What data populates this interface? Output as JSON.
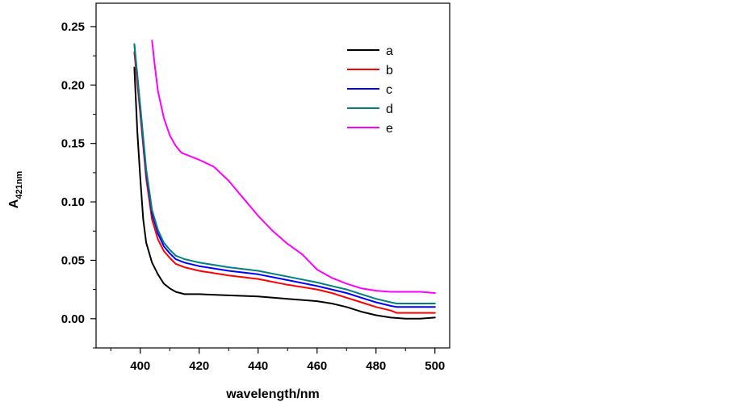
{
  "chart_data": {
    "type": "line",
    "title": "",
    "xlabel": "wavelength/nm",
    "ylabel_main": "A",
    "ylabel_sub": "421nm",
    "xlim": [
      385,
      505
    ],
    "ylim": [
      -0.025,
      0.27
    ],
    "xticks": [
      400,
      420,
      440,
      460,
      480,
      500
    ],
    "xtick_labels": [
      "400",
      "420",
      "440",
      "460",
      "480",
      "500"
    ],
    "yticks": [
      0.0,
      0.05,
      0.1,
      0.15,
      0.2,
      0.25
    ],
    "ytick_labels": [
      "0.00",
      "0.05",
      "0.10",
      "0.15",
      "0.20",
      "0.25"
    ],
    "grid": false,
    "legend_position": "top-right",
    "series": [
      {
        "name": "a",
        "color": "#000000",
        "x": [
          398,
          399,
          400,
          401,
          402,
          404,
          406,
          408,
          410,
          412,
          415,
          420,
          430,
          440,
          450,
          460,
          465,
          470,
          475,
          480,
          485,
          490,
          495,
          500
        ],
        "y": [
          0.215,
          0.16,
          0.12,
          0.085,
          0.065,
          0.048,
          0.038,
          0.03,
          0.026,
          0.023,
          0.021,
          0.021,
          0.02,
          0.019,
          0.017,
          0.015,
          0.013,
          0.01,
          0.006,
          0.003,
          0.001,
          0.0,
          0.0,
          0.001
        ]
      },
      {
        "name": "b",
        "color": "#ff0000",
        "x": [
          398,
          400,
          402,
          404,
          406,
          408,
          410,
          412,
          415,
          420,
          430,
          440,
          450,
          460,
          465,
          470,
          475,
          480,
          485,
          487,
          490,
          495,
          500
        ],
        "y": [
          0.228,
          0.175,
          0.12,
          0.085,
          0.068,
          0.058,
          0.052,
          0.047,
          0.044,
          0.041,
          0.037,
          0.034,
          0.029,
          0.025,
          0.022,
          0.018,
          0.014,
          0.01,
          0.007,
          0.005,
          0.005,
          0.005,
          0.005
        ]
      },
      {
        "name": "c",
        "color": "#0000ff",
        "x": [
          398,
          400,
          402,
          404,
          406,
          408,
          410,
          412,
          415,
          420,
          430,
          440,
          450,
          460,
          465,
          470,
          475,
          480,
          485,
          487,
          490,
          495,
          500
        ],
        "y": [
          0.235,
          0.18,
          0.125,
          0.09,
          0.073,
          0.062,
          0.056,
          0.051,
          0.048,
          0.045,
          0.041,
          0.038,
          0.033,
          0.028,
          0.025,
          0.022,
          0.018,
          0.014,
          0.011,
          0.01,
          0.01,
          0.01,
          0.01
        ]
      },
      {
        "name": "d",
        "color": "#008080",
        "x": [
          398,
          400,
          402,
          404,
          406,
          408,
          410,
          412,
          415,
          420,
          430,
          440,
          450,
          460,
          465,
          470,
          475,
          480,
          485,
          487,
          490,
          495,
          500
        ],
        "y": [
          0.235,
          0.182,
          0.128,
          0.093,
          0.076,
          0.065,
          0.059,
          0.054,
          0.051,
          0.048,
          0.044,
          0.041,
          0.036,
          0.031,
          0.028,
          0.025,
          0.021,
          0.017,
          0.014,
          0.013,
          0.013,
          0.013,
          0.013
        ]
      },
      {
        "name": "e",
        "color": "#ff00ff",
        "x": [
          404,
          405,
          406,
          408,
          410,
          412,
          414,
          416,
          420,
          425,
          430,
          435,
          440,
          445,
          450,
          455,
          460,
          465,
          470,
          475,
          480,
          485,
          490,
          495,
          500
        ],
        "y": [
          0.238,
          0.215,
          0.195,
          0.172,
          0.157,
          0.148,
          0.142,
          0.14,
          0.136,
          0.13,
          0.118,
          0.103,
          0.088,
          0.075,
          0.064,
          0.055,
          0.042,
          0.035,
          0.03,
          0.026,
          0.024,
          0.023,
          0.023,
          0.023,
          0.022
        ]
      }
    ]
  }
}
